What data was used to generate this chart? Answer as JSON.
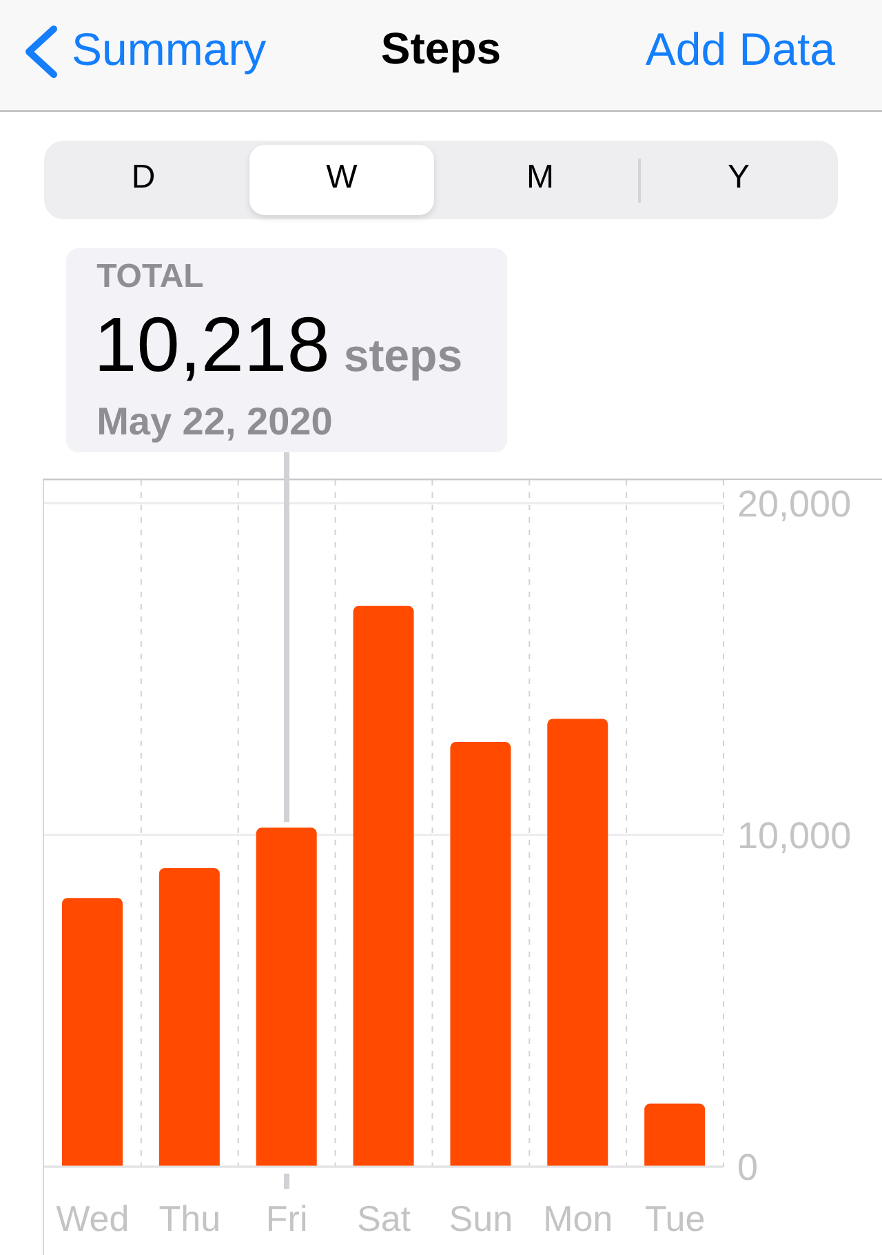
{
  "chart_data": {
    "type": "bar",
    "title": "Steps",
    "categories": [
      "Wed",
      "Thu",
      "Fri",
      "Sat",
      "Sun",
      "Mon",
      "Tue"
    ],
    "values": [
      8100,
      9000,
      10218,
      16900,
      12800,
      13500,
      1900
    ],
    "color": "#ff4a00",
    "ylim": [
      0,
      20700
    ],
    "yticks": [
      0,
      {
        "value": 10000,
        "label": "10,000"
      },
      {
        "value": 20000,
        "label": "20,000"
      }
    ],
    "grid": true,
    "annotations": [
      "Summary",
      "Add Data",
      "D",
      "W",
      "M",
      "Y",
      "TOTAL",
      {
        "text": "10,218",
        "x": "Fri",
        "y": 10218
      },
      "steps",
      "May 22, 2020"
    ]
  }
}
